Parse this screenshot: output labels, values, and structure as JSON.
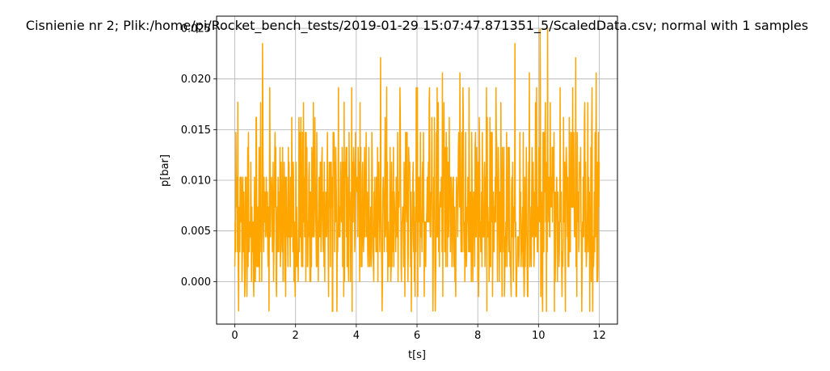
{
  "chart_data": {
    "type": "line",
    "title": "Cisnienie nr 2; Plik:/home/pi/Rocket_bench_tests/2019-01-29 15:07:47.871351_5/ScaledData.csv; normal with 1 samples",
    "xlabel": "t[s]",
    "ylabel": "p[bar]",
    "xlim": [
      -0.6,
      12.6
    ],
    "ylim": [
      -0.0042,
      0.0262
    ],
    "x_ticks": [
      0,
      2,
      4,
      6,
      8,
      10,
      12
    ],
    "x_tick_labels": [
      "0",
      "2",
      "4",
      "6",
      "8",
      "10",
      "12"
    ],
    "y_ticks": [
      0.0,
      0.005,
      0.01,
      0.015,
      0.02,
      0.025
    ],
    "y_tick_labels": [
      "0.000",
      "0.005",
      "0.010",
      "0.015",
      "0.020",
      "0.025"
    ],
    "grid": true,
    "legend": "none",
    "series": [
      {
        "color": "#ffa500",
        "x_start": 0.0,
        "x_step": 0.0125,
        "count": 961,
        "quantum": 0.001472,
        "levels": [
          -2,
          -1,
          0,
          1,
          2,
          3,
          4,
          5,
          6,
          7,
          8,
          9,
          10,
          11,
          12,
          13,
          14,
          15,
          16,
          17
        ],
        "level_weights": [
          2,
          4,
          6,
          12,
          16,
          16,
          16,
          14,
          12,
          10,
          8,
          7,
          5,
          3,
          2,
          1.2,
          0.8,
          0.5,
          0.3,
          0.2
        ],
        "peaks": [
          {
            "x": 0.91,
            "y": 0.0235
          },
          {
            "x": 4.8,
            "y": 0.0221
          },
          {
            "x": 9.22,
            "y": 0.0235
          },
          {
            "x": 10.05,
            "y": 0.0249
          },
          {
            "x": 10.3,
            "y": 0.0249
          },
          {
            "x": 11.22,
            "y": 0.0221
          },
          {
            "x": 11.9,
            "y": 0.0206
          },
          {
            "x": 6.84,
            "y": 0.0206
          },
          {
            "x": 7.41,
            "y": 0.0206
          },
          {
            "x": 9.7,
            "y": 0.0206
          },
          {
            "x": 5.0,
            "y": 0.0192
          },
          {
            "x": 0.1,
            "y": 0.0177
          },
          {
            "x": 3.6,
            "y": 0.0177
          },
          {
            "x": 0.12,
            "y": -0.0029
          },
          {
            "x": 1.12,
            "y": -0.0029
          },
          {
            "x": 4.85,
            "y": -0.0029
          },
          {
            "x": 6.52,
            "y": -0.0029
          },
          {
            "x": 6.6,
            "y": -0.0029
          },
          {
            "x": 8.3,
            "y": -0.0029
          }
        ]
      }
    ]
  }
}
